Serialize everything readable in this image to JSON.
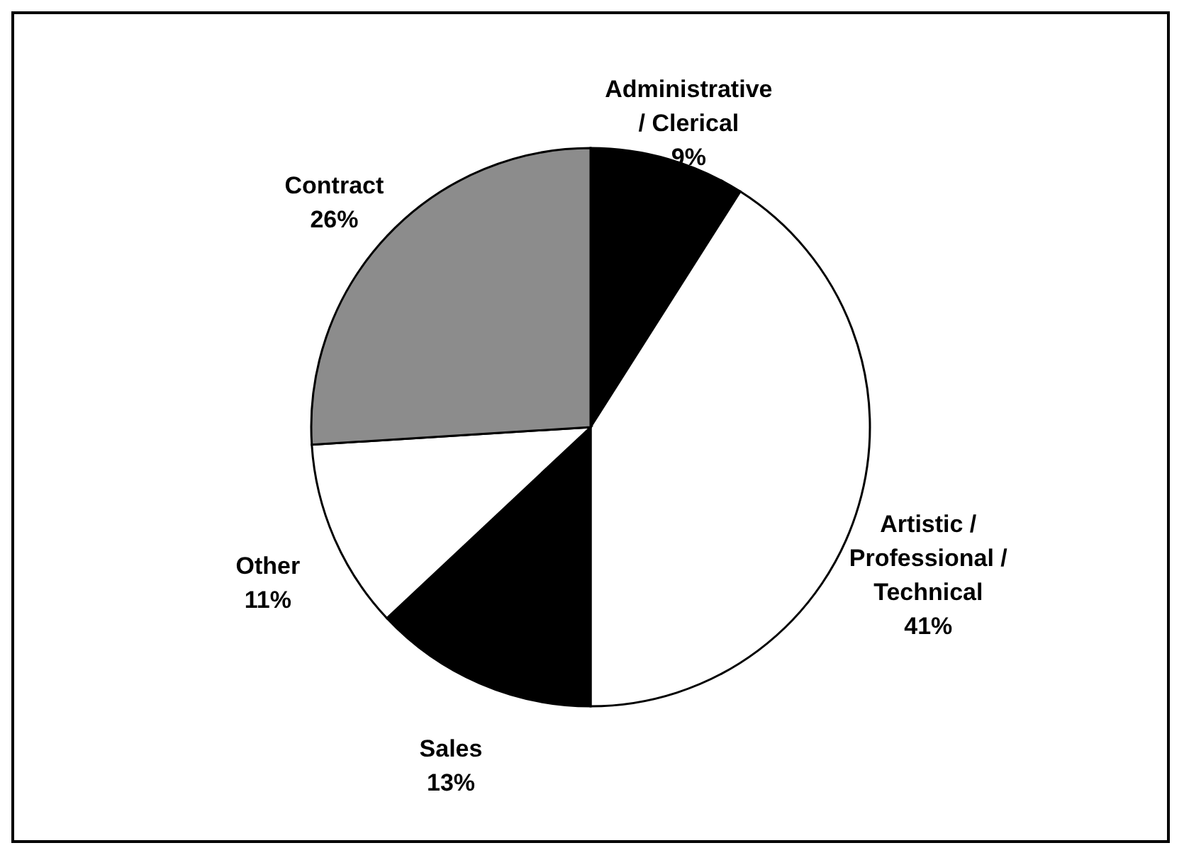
{
  "chart_data": {
    "type": "pie",
    "categories": [
      "Administrative\n/ Clerical",
      "Artistic /\nProfessional /\nTechnical",
      "Sales",
      "Other",
      "Contract"
    ],
    "values": [
      9,
      41,
      13,
      11,
      26
    ],
    "value_labels": [
      "9%",
      "41%",
      "13%",
      "11%",
      "26%"
    ],
    "colors": [
      "#000000",
      "#ffffff",
      "#000000",
      "#ffffff",
      "#8c8c8c"
    ],
    "legend": false
  }
}
